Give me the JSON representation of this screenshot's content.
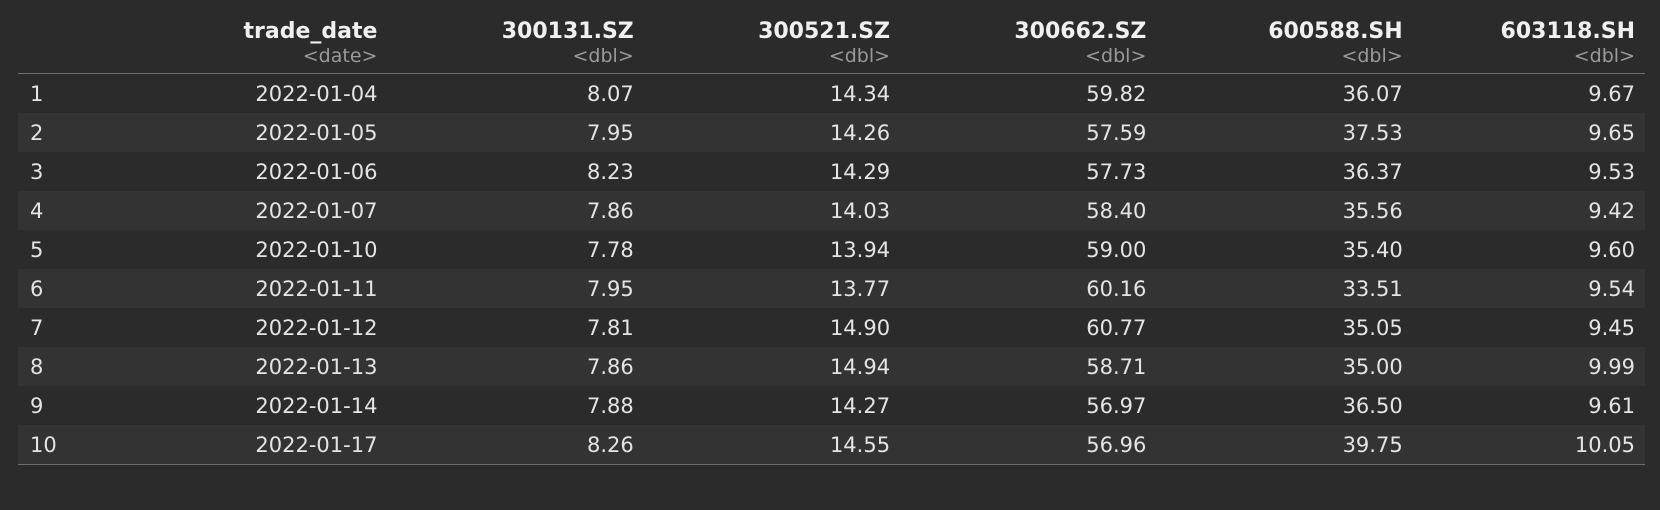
{
  "columns": [
    {
      "name": "",
      "type": ""
    },
    {
      "name": "trade_date",
      "type": "<date>"
    },
    {
      "name": "300131.SZ",
      "type": "<dbl>"
    },
    {
      "name": "300521.SZ",
      "type": "<dbl>"
    },
    {
      "name": "300662.SZ",
      "type": "<dbl>"
    },
    {
      "name": "600588.SH",
      "type": "<dbl>"
    },
    {
      "name": "603118.SH",
      "type": "<dbl>"
    }
  ],
  "rows": [
    [
      "1",
      "2022-01-04",
      "8.07",
      "14.34",
      "59.82",
      "36.07",
      "9.67"
    ],
    [
      "2",
      "2022-01-05",
      "7.95",
      "14.26",
      "57.59",
      "37.53",
      "9.65"
    ],
    [
      "3",
      "2022-01-06",
      "8.23",
      "14.29",
      "57.73",
      "36.37",
      "9.53"
    ],
    [
      "4",
      "2022-01-07",
      "7.86",
      "14.03",
      "58.40",
      "35.56",
      "9.42"
    ],
    [
      "5",
      "2022-01-10",
      "7.78",
      "13.94",
      "59.00",
      "35.40",
      "9.60"
    ],
    [
      "6",
      "2022-01-11",
      "7.95",
      "13.77",
      "60.16",
      "33.51",
      "9.54"
    ],
    [
      "7",
      "2022-01-12",
      "7.81",
      "14.90",
      "60.77",
      "35.05",
      "9.45"
    ],
    [
      "8",
      "2022-01-13",
      "7.86",
      "14.94",
      "58.71",
      "35.00",
      "9.99"
    ],
    [
      "9",
      "2022-01-14",
      "7.88",
      "14.27",
      "56.97",
      "36.50",
      "9.61"
    ],
    [
      "10",
      "2022-01-17",
      "8.26",
      "14.55",
      "56.96",
      "39.75",
      "10.05"
    ]
  ]
}
